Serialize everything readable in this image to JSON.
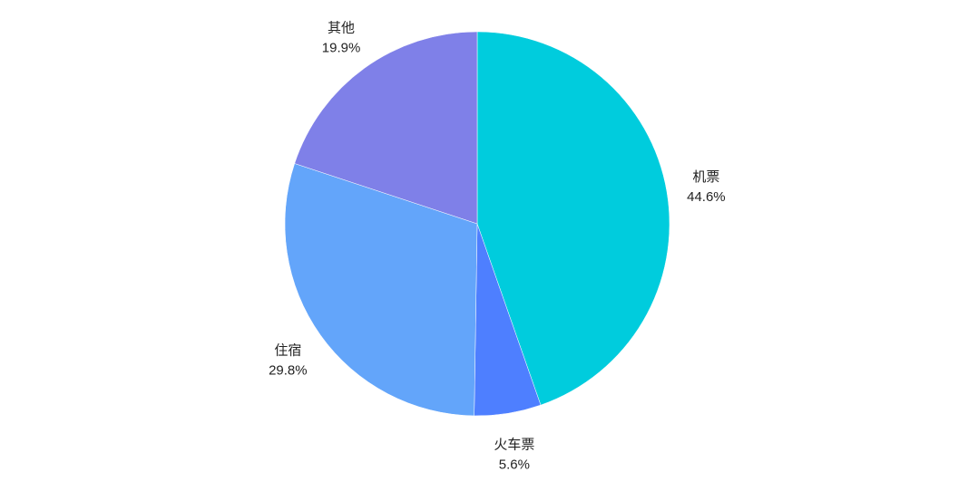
{
  "chart_data": {
    "type": "pie",
    "start_angle": "top, clockwise",
    "slices": [
      {
        "label": "机票",
        "value": 44.6,
        "value_label": "44.6%",
        "color": "#00CCDD"
      },
      {
        "label": "火车票",
        "value": 5.6,
        "value_label": "5.6%",
        "color": "#4E7FFF"
      },
      {
        "label": "住宿",
        "value": 29.8,
        "value_label": "29.8%",
        "color": "#63A5FA"
      },
      {
        "label": "其他",
        "value": 19.9,
        "value_label": "19.9%",
        "color": "#7F80E8"
      }
    ],
    "legend": "none"
  }
}
